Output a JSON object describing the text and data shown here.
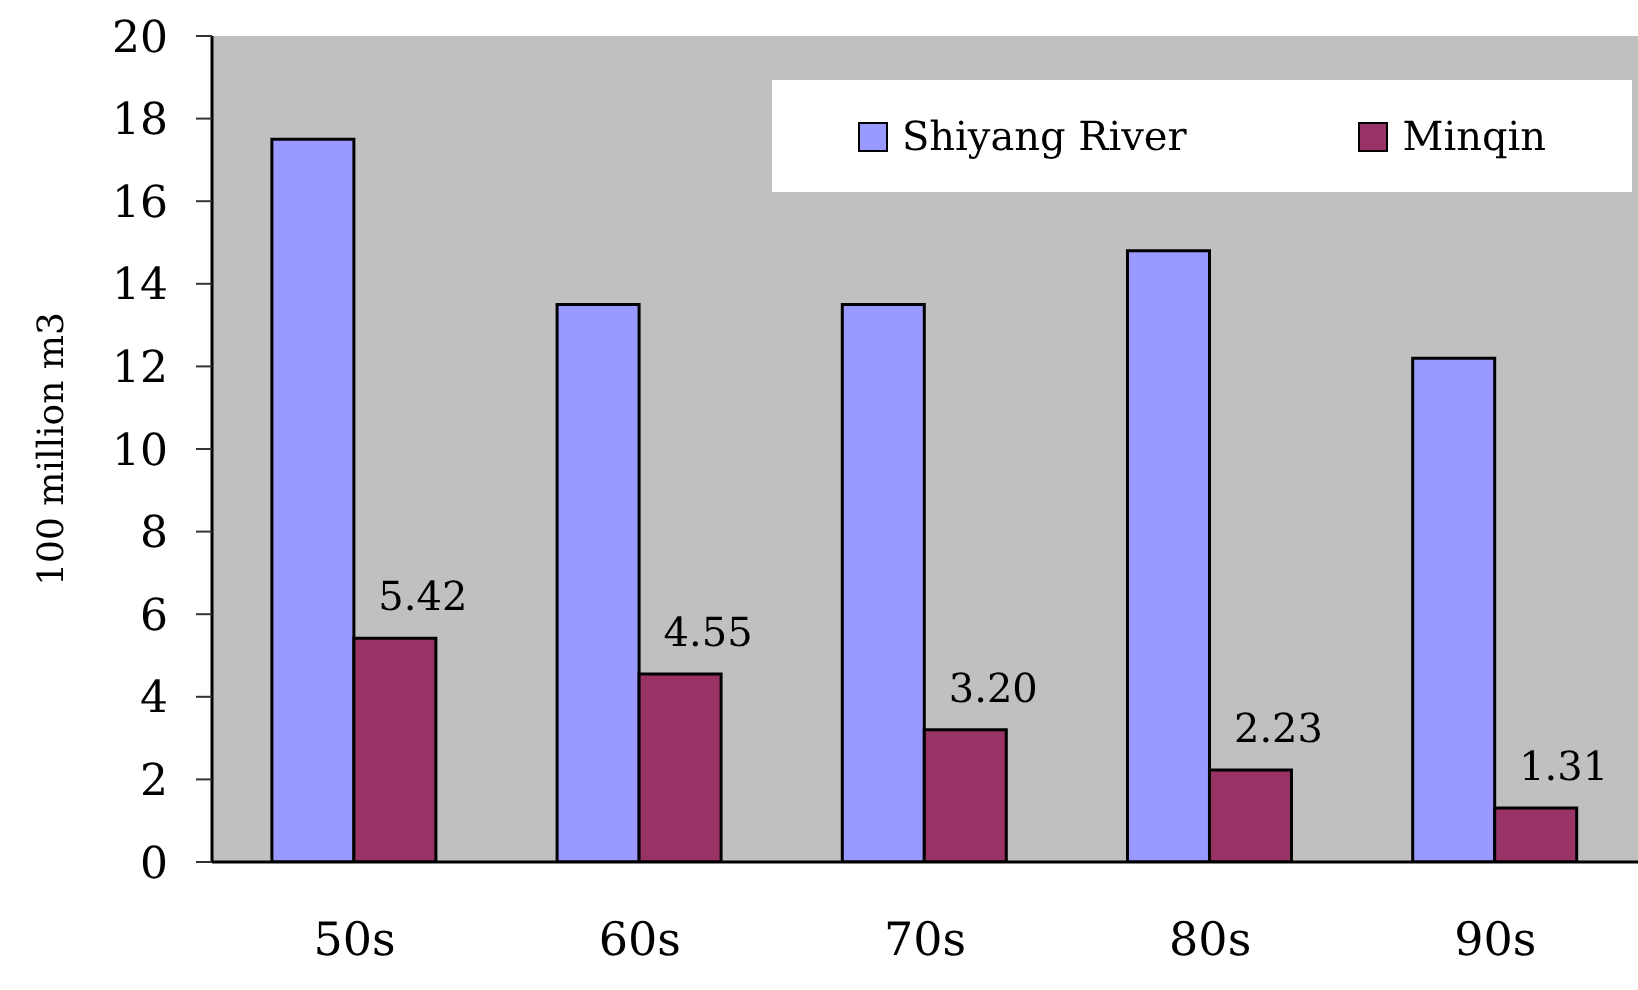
{
  "chart_data": {
    "type": "bar",
    "ylabel": "100 million m3",
    "categories": [
      "50s",
      "60s",
      "70s",
      "80s",
      "90s"
    ],
    "series": [
      {
        "name": "Shiyang River",
        "color": "#9999ff",
        "values": [
          17.5,
          13.5,
          13.5,
          14.8,
          12.2
        ]
      },
      {
        "name": "Minqin",
        "color": "#993366",
        "values": [
          5.42,
          4.55,
          3.2,
          2.23,
          1.31
        ],
        "value_labels": [
          "5.42",
          "4.55",
          "3.20",
          "2.23",
          "1.31"
        ]
      }
    ],
    "ylim": [
      0,
      20
    ],
    "yticks": [
      0,
      2,
      4,
      6,
      8,
      10,
      12,
      14,
      16,
      18,
      20
    ],
    "legend": "top right",
    "grid": false
  }
}
